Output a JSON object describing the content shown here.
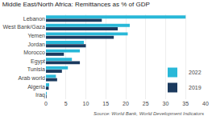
{
  "chart_data": {
    "type": "bar",
    "orientation": "horizontal",
    "title": "Middle East/North Africa: Remittances as % of GDP",
    "categories": [
      "Lebanon",
      "West Bank/Gaza",
      "Yemen",
      "Jordan",
      "Morocco",
      "Egypt",
      "Tunisia",
      "Arab world",
      "Algeria",
      "Iraq"
    ],
    "series": [
      {
        "name": "2022",
        "color": "#29b8d8",
        "values": [
          35,
          21,
          20.5,
          9.5,
          8.5,
          6.5,
          5.5,
          2.5,
          0.8,
          0.2
        ]
      },
      {
        "name": "2019",
        "color": "#1b3a5e",
        "values": [
          14,
          18,
          17,
          10,
          4.5,
          8.5,
          4.0,
          2.8,
          0.7,
          0.15
        ]
      }
    ],
    "xlim": [
      0,
      40
    ],
    "xticks": [
      0,
      5,
      10,
      15,
      20,
      25,
      30,
      35,
      40
    ],
    "grid": true,
    "legend": "lower right",
    "annotations": [
      "Source: World Bank, World Development Indicators"
    ]
  }
}
